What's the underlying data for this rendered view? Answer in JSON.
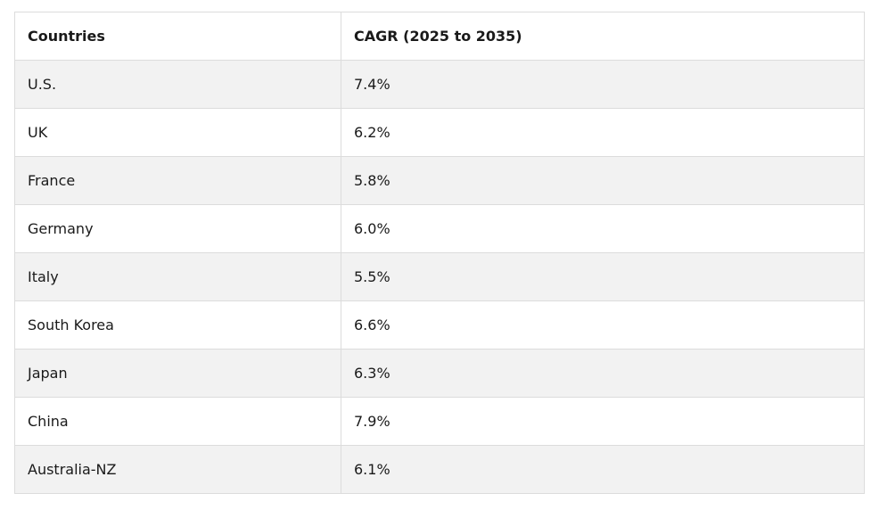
{
  "table": {
    "headers": [
      "Countries",
      "CAGR (2025 to 2035)"
    ],
    "rows": [
      [
        "U.S.",
        "7.4%"
      ],
      [
        "UK",
        "6.2%"
      ],
      [
        "France",
        "5.8%"
      ],
      [
        "Germany",
        "6.0%"
      ],
      [
        "Italy",
        "5.5%"
      ],
      [
        "South Korea",
        "6.6%"
      ],
      [
        "Japan",
        "6.3%"
      ],
      [
        "China",
        "7.9%"
      ],
      [
        "Australia-NZ",
        "6.1%"
      ]
    ]
  }
}
